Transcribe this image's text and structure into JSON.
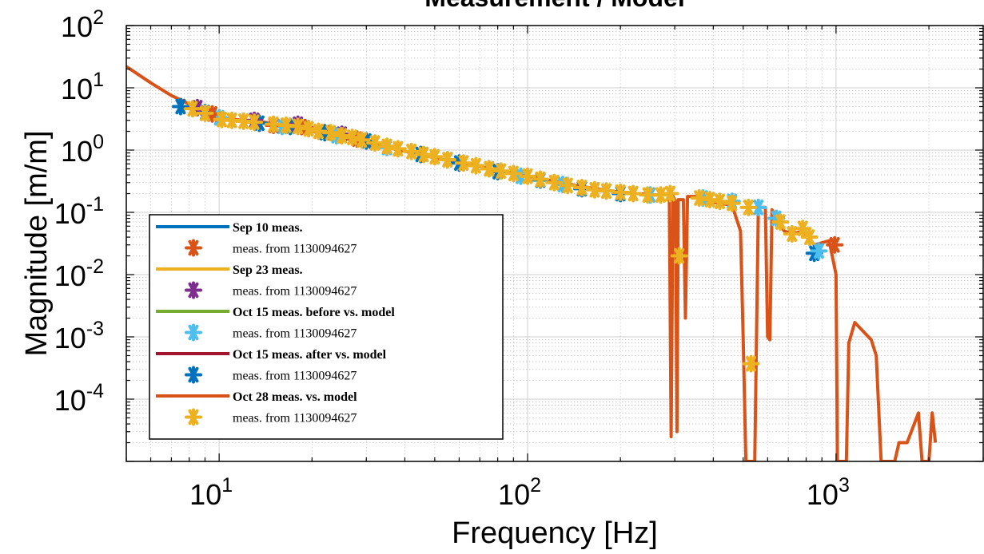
{
  "chart_data": {
    "type": "line",
    "title": "Measurement / Model",
    "xlabel": "Frequency [Hz]",
    "ylabel": "Magnitude [m/m]",
    "x_scale": "log",
    "y_scale": "log",
    "xlim": [
      5,
      3000
    ],
    "ylim": [
      1e-05,
      100
    ],
    "grid": true,
    "minor_grid": true,
    "legend_position": "lower-left",
    "x_ticks": [
      {
        "value": 10,
        "base": "10",
        "exp": "1"
      },
      {
        "value": 100,
        "base": "10",
        "exp": "2"
      },
      {
        "value": 1000,
        "base": "10",
        "exp": "3"
      }
    ],
    "y_ticks": [
      {
        "value": 100,
        "base": "10",
        "exp": "2"
      },
      {
        "value": 10,
        "base": "10",
        "exp": "1"
      },
      {
        "value": 1,
        "base": "10",
        "exp": "0"
      },
      {
        "value": 0.1,
        "base": "10",
        "exp": "-1"
      },
      {
        "value": 0.01,
        "base": "10",
        "exp": "-2"
      },
      {
        "value": 0.001,
        "base": "10",
        "exp": "-3"
      },
      {
        "value": 0.0001,
        "base": "10",
        "exp": "-4"
      }
    ],
    "legend": [
      {
        "label": "Sep 10 meas.",
        "kind": "line",
        "color": "#0072BD"
      },
      {
        "label": "meas. from 1130094627",
        "kind": "marker",
        "color": "#D95319"
      },
      {
        "label": "Sep 23 meas.",
        "kind": "line",
        "color": "#EDB120"
      },
      {
        "label": "meas. from 1130094627",
        "kind": "marker",
        "color": "#7E2F8E"
      },
      {
        "label": "Oct 15 meas. before vs. model",
        "kind": "line",
        "color": "#77AC30"
      },
      {
        "label": "meas. from 1130094627",
        "kind": "marker",
        "color": "#4DBEEE"
      },
      {
        "label": "Oct 15 meas. after vs. model",
        "kind": "line",
        "color": "#A2142F"
      },
      {
        "label": "meas. from 1130094627",
        "kind": "marker",
        "color": "#0072BD"
      },
      {
        "label": "Oct 28 meas. vs. model",
        "kind": "line",
        "color": "#D95319"
      },
      {
        "label": "meas. from 1130094627",
        "kind": "marker",
        "color": "#EDB120"
      }
    ],
    "model_line": {
      "name": "Oct 28 meas. vs. model",
      "color": "#D95319",
      "points": [
        [
          5,
          22
        ],
        [
          6,
          12
        ],
        [
          7,
          7.5
        ],
        [
          8,
          5.5
        ],
        [
          10,
          3.3
        ],
        [
          12,
          3.0
        ],
        [
          14,
          2.8
        ],
        [
          20,
          2.0
        ],
        [
          30,
          1.3
        ],
        [
          50,
          0.75
        ],
        [
          70,
          0.55
        ],
        [
          100,
          0.38
        ],
        [
          150,
          0.26
        ],
        [
          200,
          0.21
        ],
        [
          260,
          0.19
        ],
        [
          288,
          0.2
        ],
        [
          292,
          2.5e-05
        ],
        [
          296,
          0.18
        ],
        [
          302,
          0.15
        ],
        [
          305,
          3e-05
        ],
        [
          308,
          0.16
        ],
        [
          320,
          0.16
        ],
        [
          325,
          0.002
        ],
        [
          330,
          0.18
        ],
        [
          350,
          0.18
        ],
        [
          380,
          0.15
        ],
        [
          420,
          0.14
        ],
        [
          460,
          0.13
        ],
        [
          490,
          0.05
        ],
        [
          500,
          0.001
        ],
        [
          510,
          1e-05
        ],
        [
          520,
          1e-05
        ],
        [
          545,
          1e-05
        ],
        [
          560,
          0.12
        ],
        [
          590,
          0.12
        ],
        [
          600,
          0.001
        ],
        [
          610,
          0.0009
        ],
        [
          620,
          0.11
        ],
        [
          650,
          0.07
        ],
        [
          680,
          0.05
        ],
        [
          720,
          0.045
        ],
        [
          780,
          0.05
        ],
        [
          850,
          0.03
        ],
        [
          950,
          0.035
        ],
        [
          1000,
          0.01
        ],
        [
          1010,
          1e-05
        ],
        [
          1080,
          1e-05
        ],
        [
          1100,
          0.0008
        ],
        [
          1150,
          0.0017
        ],
        [
          1300,
          0.0009
        ],
        [
          1350,
          0.0005
        ],
        [
          1400,
          1e-05
        ],
        [
          1550,
          1e-05
        ],
        [
          1600,
          2e-05
        ],
        [
          1700,
          2e-05
        ],
        [
          1850,
          6e-05
        ],
        [
          1900,
          1e-05
        ],
        [
          2000,
          1e-05
        ],
        [
          2050,
          6e-05
        ],
        [
          2100,
          2e-05
        ]
      ]
    },
    "marker_series": [
      {
        "name": "meas. from 1130094627",
        "color": "#0072BD",
        "points": [
          [
            7.5,
            5.0
          ],
          [
            9.0,
            4.0
          ],
          [
            13.5,
            2.7
          ],
          [
            17,
            2.4
          ],
          [
            22,
            1.9
          ],
          [
            30,
            1.4
          ],
          [
            45,
            0.85
          ],
          [
            60,
            0.62
          ],
          [
            80,
            0.45
          ],
          [
            110,
            0.33
          ],
          [
            150,
            0.24
          ],
          [
            200,
            0.2
          ],
          [
            850,
            0.022
          ]
        ]
      },
      {
        "name": "meas. from 1130094627",
        "color": "#7E2F8E",
        "points": [
          [
            8.5,
            4.8
          ],
          [
            13,
            3.0
          ],
          [
            18,
            2.6
          ],
          [
            25,
            1.8
          ]
        ]
      },
      {
        "name": "meas. from 1130094627",
        "color": "#4DBEEE",
        "points": [
          [
            10,
            3.3
          ],
          [
            16,
            2.4
          ],
          [
            24,
            1.7
          ],
          [
            35,
            1.1
          ],
          [
            55,
            0.7
          ],
          [
            75,
            0.5
          ],
          [
            95,
            0.38
          ],
          [
            130,
            0.28
          ],
          [
            180,
            0.22
          ],
          [
            250,
            0.19
          ],
          [
            370,
            0.17
          ],
          [
            460,
            0.15
          ],
          [
            560,
            0.12
          ],
          [
            640,
            0.08
          ],
          [
            880,
            0.024
          ]
        ]
      },
      {
        "name": "meas. from 1130094627",
        "color": "#D95319",
        "points": [
          [
            9.5,
            3.8
          ],
          [
            15,
            2.5
          ],
          [
            19,
            2.3
          ],
          [
            28,
            1.5
          ],
          [
            990,
            0.03
          ]
        ]
      },
      {
        "name": "meas. from 1130094627",
        "color": "#EDB120",
        "points": [
          [
            8.2,
            4.6
          ],
          [
            9.0,
            3.9
          ],
          [
            10.2,
            3.1
          ],
          [
            11,
            3.0
          ],
          [
            12,
            2.9
          ],
          [
            13,
            2.8
          ],
          [
            15,
            2.6
          ],
          [
            16.5,
            2.5
          ],
          [
            18,
            2.4
          ],
          [
            19.5,
            2.2
          ],
          [
            21,
            2.0
          ],
          [
            23,
            1.9
          ],
          [
            25,
            1.7
          ],
          [
            27,
            1.6
          ],
          [
            29,
            1.45
          ],
          [
            32,
            1.3
          ],
          [
            35,
            1.15
          ],
          [
            38,
            1.05
          ],
          [
            42,
            0.95
          ],
          [
            46,
            0.85
          ],
          [
            50,
            0.78
          ],
          [
            55,
            0.7
          ],
          [
            62,
            0.62
          ],
          [
            68,
            0.56
          ],
          [
            75,
            0.5
          ],
          [
            82,
            0.46
          ],
          [
            90,
            0.42
          ],
          [
            100,
            0.38
          ],
          [
            110,
            0.34
          ],
          [
            122,
            0.3
          ],
          [
            135,
            0.27
          ],
          [
            150,
            0.25
          ],
          [
            165,
            0.23
          ],
          [
            180,
            0.22
          ],
          [
            200,
            0.21
          ],
          [
            220,
            0.2
          ],
          [
            245,
            0.19
          ],
          [
            270,
            0.19
          ],
          [
            290,
            0.2
          ],
          [
            310,
            0.02
          ],
          [
            360,
            0.17
          ],
          [
            390,
            0.16
          ],
          [
            420,
            0.15
          ],
          [
            460,
            0.14
          ],
          [
            520,
            0.12
          ],
          [
            530,
            0.00037
          ],
          [
            660,
            0.07
          ],
          [
            720,
            0.045
          ],
          [
            780,
            0.055
          ],
          [
            820,
            0.04
          ]
        ]
      }
    ]
  }
}
